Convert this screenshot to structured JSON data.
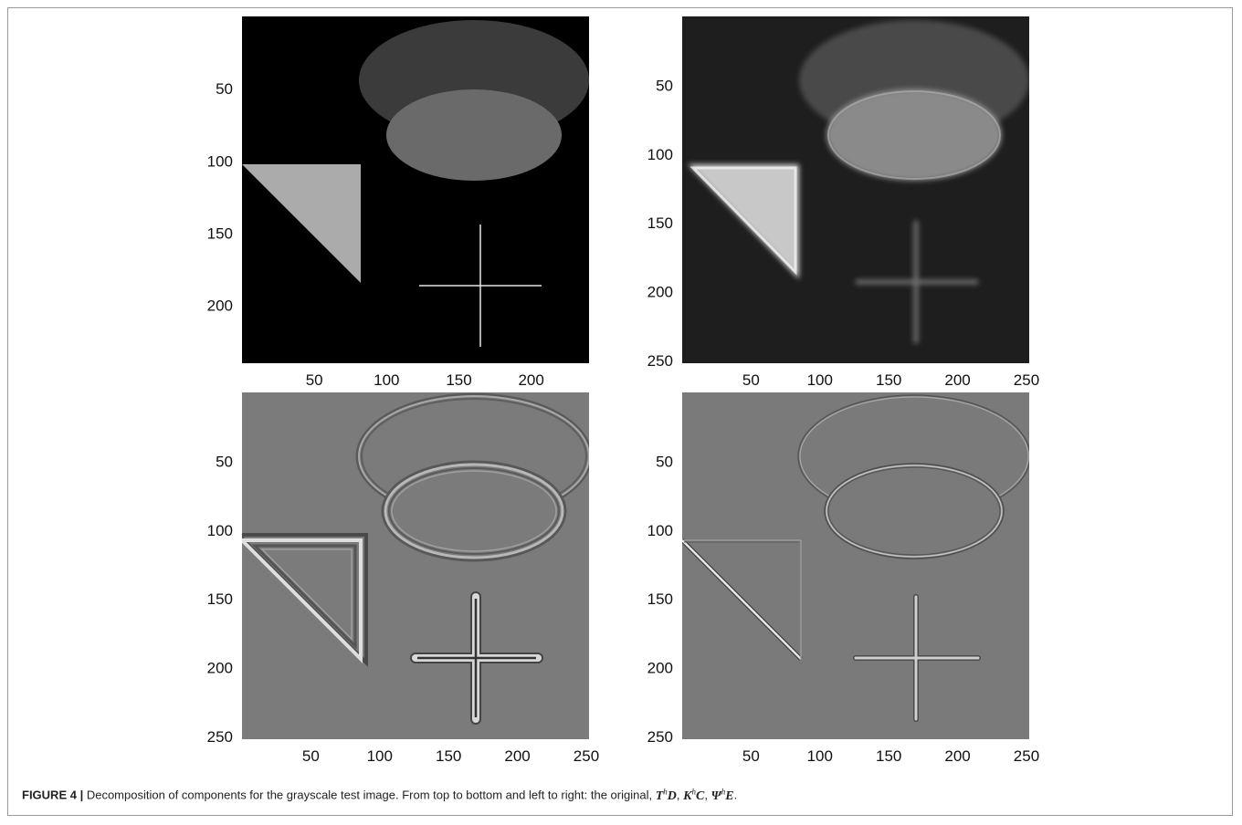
{
  "figure": {
    "label": "FIGURE 4 |",
    "caption_text": "Decomposition of components for the grayscale test image. From top to bottom and left to right: the original,",
    "terms": [
      {
        "base": "T",
        "sup": "h",
        "tail": "D"
      },
      {
        "base": "K",
        "sup": "h",
        "tail": "C"
      },
      {
        "base": "Ψ",
        "sup": "h",
        "tail": "E"
      }
    ],
    "term_sep": ", ",
    "caption_end": "."
  },
  "panels": [
    {
      "name": "original",
      "yticks": [
        "50",
        "100",
        "150",
        "200"
      ],
      "xticks": [
        "50",
        "100",
        "150",
        "200"
      ],
      "extent": 240
    },
    {
      "name": "T-h-D",
      "yticks": [
        "50",
        "100",
        "150",
        "200",
        "250"
      ],
      "xticks": [
        "50",
        "100",
        "150",
        "200",
        "250"
      ],
      "extent": 252
    },
    {
      "name": "K-h-C",
      "yticks": [
        "50",
        "100",
        "150",
        "200",
        "250"
      ],
      "xticks": [
        "50",
        "100",
        "150",
        "200",
        "250"
      ],
      "extent": 252
    },
    {
      "name": "Psi-h-E",
      "yticks": [
        "50",
        "100",
        "150",
        "200",
        "250"
      ],
      "xticks": [
        "50",
        "100",
        "150",
        "200",
        "250"
      ],
      "extent": 252
    }
  ],
  "colors": {
    "original_bg": "#000000",
    "smoothed_bg": "#1e1e1e",
    "edge_bg": "#7b7b7b"
  }
}
